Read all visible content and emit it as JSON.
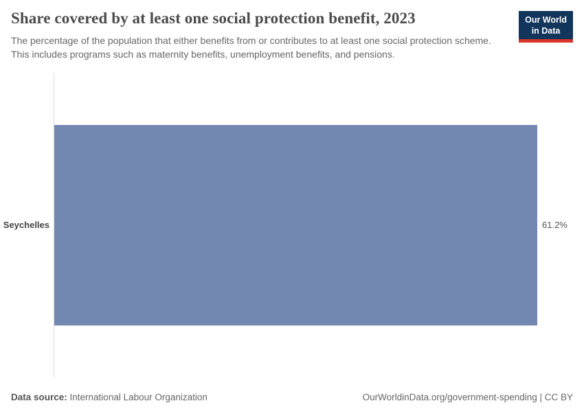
{
  "header": {
    "title": "Share covered by at least one social protection benefit, 2023",
    "subtitle": "The percentage of the population that either benefits from or contributes to at least one social protection scheme. This includes programs such as maternity benefits, unemployment benefits, and pensions.",
    "logo": {
      "line1": "Our World",
      "line2": "in Data"
    }
  },
  "chart_data": {
    "type": "bar",
    "orientation": "horizontal",
    "title": "Share covered by at least one social protection benefit, 2023",
    "categories": [
      "Seychelles"
    ],
    "values": [
      61.2
    ],
    "value_labels": [
      "61.2%"
    ],
    "xlabel": "",
    "ylabel": "",
    "xlim": [
      0,
      61.2
    ],
    "grid": false,
    "legend": false
  },
  "colors": {
    "bar": "#7288b1",
    "logo_bg": "#12355b",
    "logo_accent": "#d7352a",
    "axis_line": "#dadada"
  },
  "footer": {
    "datasource_label": "Data source:",
    "datasource_value": " International Labour Organization",
    "credit": "OurWorldinData.org/government-spending | CC BY"
  }
}
